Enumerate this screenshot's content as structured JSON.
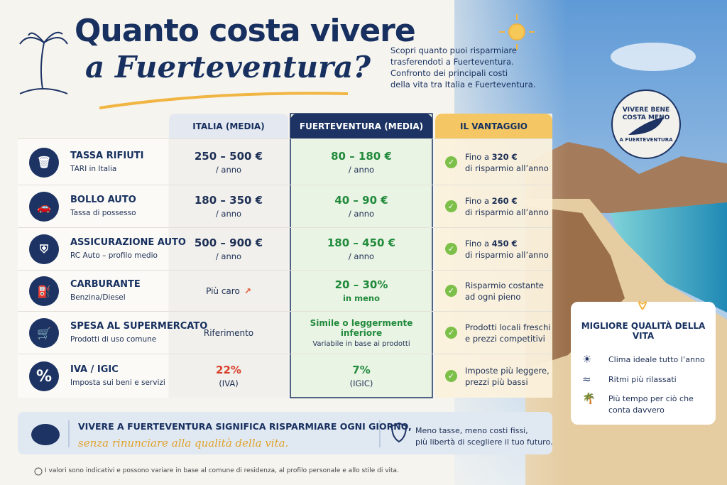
{
  "header": {
    "title_line1": "Quanto costa vivere",
    "title_line2": "a Fuerteventura?",
    "intro": [
      "Scopri quanto puoi risparmiare",
      "trasferendoti a Fuerteventura.",
      "Confronto dei principali costi",
      "della vita tra Italia e Fuerteventura."
    ]
  },
  "stamp": {
    "line1": "VIVERE BENE",
    "line2": "COSTA MENO",
    "line3": "A FUERTEVENTURA"
  },
  "table": {
    "columns": [
      "ITALIA (MEDIA)",
      "FUERTEVENTURA (MEDIA)",
      "IL VANTAGGIO"
    ],
    "rows": [
      {
        "name": "TASSA RIFIUTI",
        "sub": "TARI in Italia",
        "italia": [
          "250 – 500 €",
          "/ anno"
        ],
        "fuerte": [
          "80 – 180 €",
          "/ anno"
        ],
        "advantage": {
          "text": "Fino a",
          "bold": "320 €",
          "line2": "di risparmio all’anno"
        }
      },
      {
        "name": "BOLLO AUTO",
        "sub": "Tassa di possesso",
        "italia": [
          "180 – 350 €",
          "/ anno"
        ],
        "fuerte": [
          "40 – 90 €",
          "/ anno"
        ],
        "advantage": {
          "text": "Fino a",
          "bold": "260 €",
          "line2": "di risparmio all’anno"
        }
      },
      {
        "name": "ASSICURAZIONE AUTO",
        "sub": "RC Auto – profilo medio",
        "italia": [
          "500 – 900 €",
          "/ anno"
        ],
        "fuerte": [
          "180 – 450 €",
          "/ anno"
        ],
        "advantage": {
          "text": "Fino a",
          "bold": "450 €",
          "line2": "di risparmio all’anno"
        }
      },
      {
        "name": "CARBURANTE",
        "sub": "Benzina/Diesel",
        "italia": [
          "Più caro"
        ],
        "fuerte": [
          "20 – 30%",
          "in meno"
        ],
        "advantage": {
          "text": "Risparmio costante",
          "line2": "ad ogni pieno"
        }
      },
      {
        "name": "SPESA AL SUPERMERCATO",
        "sub": "Prodotti di uso comune",
        "italia": [
          "Riferimento"
        ],
        "fuerte": [
          "Simile o leggermente inferiore",
          "Variabile in base ai prodotti"
        ],
        "advantage": {
          "text": "Prodotti locali freschi",
          "line2": "e prezzi competitivi"
        }
      },
      {
        "name": "IVA / IGIC",
        "sub": "Imposta sui beni e servizi",
        "italia": [
          "22%",
          "(IVA)"
        ],
        "fuerte": [
          "7%",
          "(IGIC)"
        ],
        "advantage": {
          "text": "Imposte più leggere,",
          "line2": "prezzi più bassi"
        }
      }
    ]
  },
  "quality": {
    "title": "MIGLIORE QUALITÀ DELLA VITA",
    "items": [
      "Clima ideale tutto l’anno",
      "Ritmi più rilassati",
      "Più tempo per ciò che conta davvero"
    ]
  },
  "banner": {
    "headline": "VIVERE A FUERTEVENTURA SIGNIFICA RISPARMIARE OGNI GIORNO,",
    "tagline": "senza rinunciare alla qualità della vita.",
    "side": [
      "Meno tasse, meno costi fissi,",
      "più libertà di scegliere il tuo futuro."
    ]
  },
  "footnote": "I valori sono indicativi e possono variare in base al comune di residenza, al profilo personale e allo stile di vita."
}
